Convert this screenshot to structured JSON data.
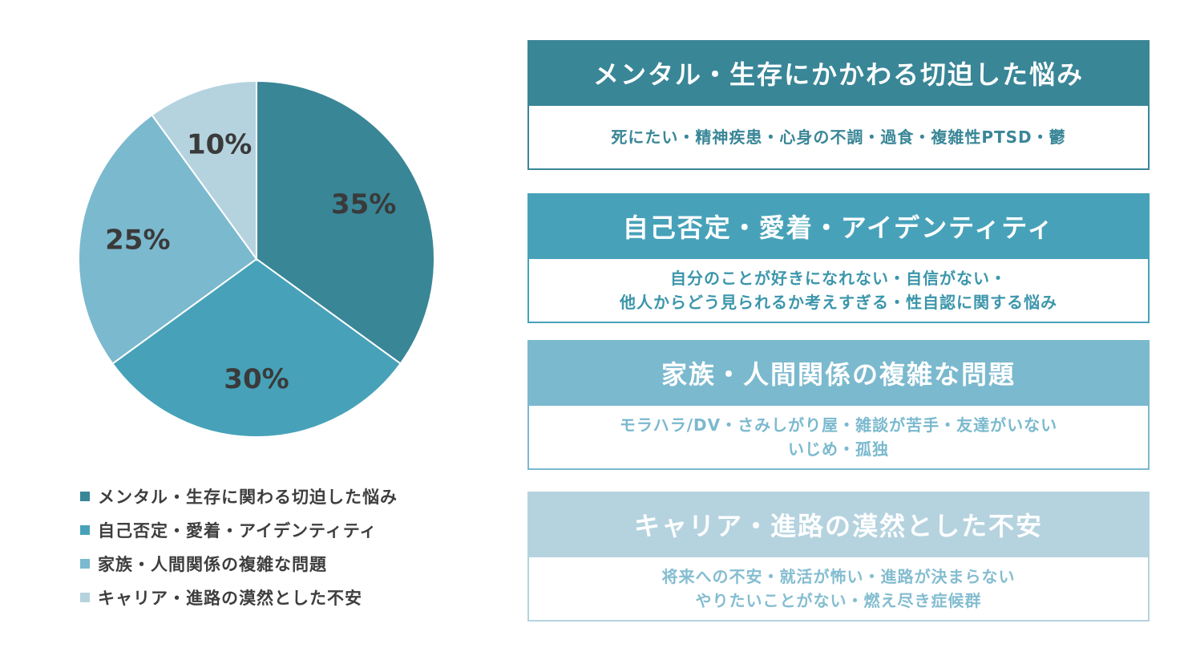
{
  "chart_data": {
    "type": "pie",
    "categories": [
      "メンタル・生存に関わる切迫した悩み",
      "自己否定・愛着・アイデンティティ",
      "家族・人間関係の複雑な問題",
      "キャリア・進路の漠然とした不安"
    ],
    "values": [
      35,
      30,
      25,
      10
    ],
    "labels": [
      "35%",
      "30%",
      "25%",
      "10%"
    ],
    "colors": [
      "#398697",
      "#47a2b9",
      "#7bb9ce",
      "#b5d3df"
    ],
    "legend_position": "bottom"
  },
  "legend": {
    "items": [
      {
        "label": "メンタル・生存に関わる切迫した悩み",
        "color": "#398697"
      },
      {
        "label": "自己否定・愛着・アイデンティティ",
        "color": "#47a2b9"
      },
      {
        "label": "家族・人間関係の複雑な問題",
        "color": "#7bb9ce"
      },
      {
        "label": "キャリア・進路の漠然とした不安",
        "color": "#b5d3df"
      }
    ]
  },
  "cards": [
    {
      "title": "メンタル・生存にかかわる切迫した悩み",
      "lines": [
        "死にたい・精神疾患・心身の不調・過食・複雑性PTSD・鬱"
      ],
      "header_color": "#398697",
      "text_color": "#398697"
    },
    {
      "title": "自己否定・愛着・アイデンティティ",
      "lines": [
        "自分のことが好きになれない・自信がない・",
        "他人からどう見られるか考えすぎる・性自認に関する悩み"
      ],
      "header_color": "#47a2b9",
      "text_color": "#3c96ab"
    },
    {
      "title": "家族・人間関係の複雑な問題",
      "lines": [
        "モラハラ/DV・さみしがり屋・雑談が苦手・友達がいない",
        "いじめ・孤独"
      ],
      "header_color": "#7bb9ce",
      "text_color": "#7bb9ce"
    },
    {
      "title": "キャリア・進路の漠然とした不安",
      "lines": [
        "将来への不安・就活が怖い・進路が決まらない",
        "やりたいことがない・燃え尽き症候群"
      ],
      "header_color": "#b5d3df",
      "text_color": "#84bdd0"
    }
  ]
}
